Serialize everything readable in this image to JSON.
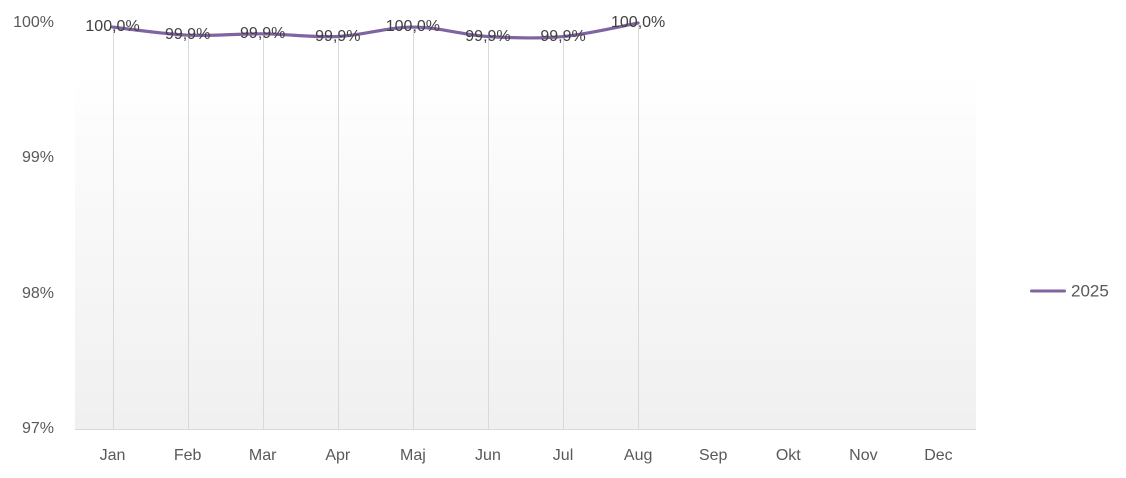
{
  "chart_data": {
    "type": "line",
    "title": "",
    "categories": [
      "Jan",
      "Feb",
      "Mar",
      "Apr",
      "Maj",
      "Jun",
      "Jul",
      "Aug",
      "Sep",
      "Okt",
      "Nov",
      "Dec"
    ],
    "series": [
      {
        "name": "2025",
        "color": "#8064A2",
        "values": [
          99.97,
          99.91,
          99.92,
          99.9,
          99.97,
          99.9,
          99.9,
          100.0,
          null,
          null,
          null,
          null
        ],
        "labels": [
          "100,0%",
          "99,9%",
          "99,9%",
          "99,9%",
          "100,0%",
          "99,9%",
          "99,9%",
          "100,0%"
        ],
        "smoothed": true
      }
    ],
    "y_axis": {
      "min": 97,
      "max": 100,
      "ticks": [
        {
          "label": "100%",
          "value": 100
        },
        {
          "label": "99%",
          "value": 99
        },
        {
          "label": "98%",
          "value": 98
        },
        {
          "label": "97%",
          "value": 97
        }
      ]
    },
    "legend": {
      "position": "right"
    },
    "style": {
      "axis_label_color": "#595959",
      "data_label_color": "#404040",
      "grid_color": "#D9D9D9",
      "drop_lines": true,
      "plot_gradient_top": "#FFFFFF",
      "plot_gradient_bottom": "#F0F0F0"
    }
  }
}
